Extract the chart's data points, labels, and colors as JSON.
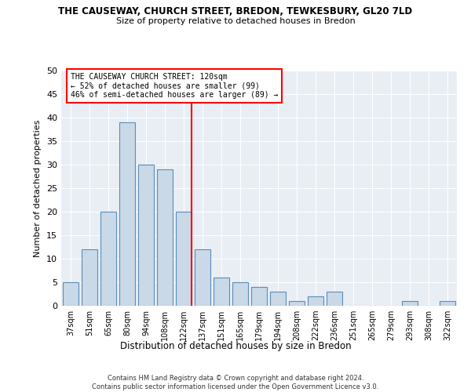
{
  "title": "THE CAUSEWAY, CHURCH STREET, BREDON, TEWKESBURY, GL20 7LD",
  "subtitle": "Size of property relative to detached houses in Bredon",
  "xlabel": "Distribution of detached houses by size in Bredon",
  "ylabel": "Number of detached properties",
  "categories": [
    "37sqm",
    "51sqm",
    "65sqm",
    "80sqm",
    "94sqm",
    "108sqm",
    "122sqm",
    "137sqm",
    "151sqm",
    "165sqm",
    "179sqm",
    "194sqm",
    "208sqm",
    "222sqm",
    "236sqm",
    "251sqm",
    "265sqm",
    "279sqm",
    "293sqm",
    "308sqm",
    "322sqm"
  ],
  "values": [
    5,
    12,
    20,
    39,
    30,
    29,
    20,
    12,
    6,
    5,
    4,
    3,
    1,
    2,
    3,
    0,
    0,
    0,
    1,
    0,
    1
  ],
  "bar_color": "#c9d9e8",
  "bar_edge_color": "#5b8db8",
  "red_line_index": 6,
  "ylim": [
    0,
    50
  ],
  "yticks": [
    0,
    5,
    10,
    15,
    20,
    25,
    30,
    35,
    40,
    45,
    50
  ],
  "annotation_title": "THE CAUSEWAY CHURCH STREET: 120sqm",
  "annotation_line1": "← 52% of detached houses are smaller (99)",
  "annotation_line2": "46% of semi-detached houses are larger (89) →",
  "background_color": "#e8eef4",
  "footer_line1": "Contains HM Land Registry data © Crown copyright and database right 2024.",
  "footer_line2": "Contains public sector information licensed under the Open Government Licence v3.0."
}
